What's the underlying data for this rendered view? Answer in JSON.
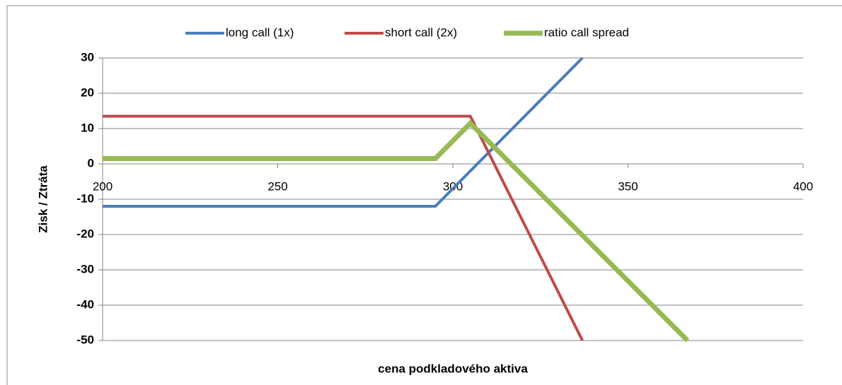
{
  "chart_data": {
    "type": "line",
    "xlabel": "cena podkladového aktiva",
    "ylabel": "Zisk / Ztráta",
    "series": [
      {
        "name": "long call (1x)",
        "color": "#4a7ebb",
        "width": 4,
        "x": [
          200,
          295,
          337
        ],
        "values": [
          -12,
          -12,
          30
        ]
      },
      {
        "name": "short call (2x)",
        "color": "#be4b48",
        "width": 4,
        "x": [
          200,
          305,
          337
        ],
        "values": [
          13.5,
          13.5,
          -50
        ]
      },
      {
        "name": "ratio call spread",
        "color": "#98b954",
        "width": 7,
        "x": [
          200,
          295,
          305,
          367
        ],
        "values": [
          1.5,
          1.5,
          11.5,
          -50
        ]
      }
    ],
    "xlim": [
      200,
      400
    ],
    "xticks": [
      200,
      250,
      300,
      350,
      400
    ],
    "ylim": [
      -50,
      30
    ],
    "yticks": [
      -50,
      -40,
      -30,
      -20,
      -10,
      0,
      10,
      20,
      30
    ],
    "grid": true,
    "legend": "top"
  }
}
